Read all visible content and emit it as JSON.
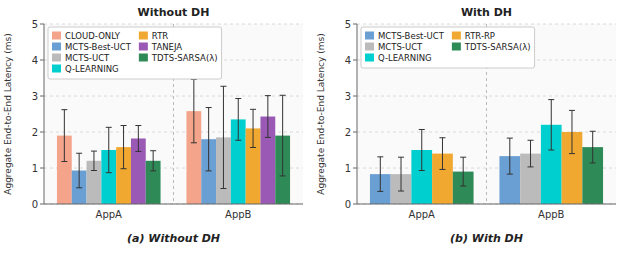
{
  "chart_data": [
    {
      "type": "bar",
      "title": "Without DH",
      "annotations": [
        "(a)  Without DH"
      ],
      "categories": [
        "AppA",
        "AppB"
      ],
      "series": [
        {
          "name": "CLOUD-ONLY",
          "color": "#F4A48A",
          "values": [
            1.9,
            2.58
          ],
          "yerr": [
            0.72,
            0.88
          ]
        },
        {
          "name": "MCTS-Best-UCT",
          "color": "#6A9FD4",
          "values": [
            0.93,
            1.8
          ],
          "yerr": [
            0.48,
            0.88
          ]
        },
        {
          "name": "MCTS-UCT",
          "color": "#BBBBBB",
          "values": [
            1.2,
            1.85
          ],
          "yerr": [
            0.27,
            1.42
          ]
        },
        {
          "name": "Q-LEARNING",
          "color": "#00CFCF",
          "values": [
            1.5,
            2.35
          ],
          "yerr": [
            0.63,
            0.58
          ]
        },
        {
          "name": "RTR",
          "color": "#F0A830",
          "values": [
            1.58,
            2.1
          ],
          "yerr": [
            0.6,
            0.53
          ]
        },
        {
          "name": "TANEJA",
          "color": "#9B59B6",
          "values": [
            1.82,
            2.43
          ],
          "yerr": [
            0.36,
            0.58
          ]
        },
        {
          "name": "TDTS-SARSA(λ)",
          "color": "#2E8B57",
          "values": [
            1.2,
            1.9
          ],
          "yerr": [
            0.28,
            1.12
          ]
        }
      ],
      "ylabel": "Aggregate End-to-End Latency (ms)",
      "ylim": [
        0,
        5
      ],
      "yticks": [
        0,
        1,
        2,
        3,
        4,
        5
      ],
      "grid": true,
      "legend": "upper left"
    },
    {
      "type": "bar",
      "title": "With DH",
      "annotations": [
        "(b)  With DH"
      ],
      "categories": [
        "AppA",
        "AppB"
      ],
      "series": [
        {
          "name": "MCTS-Best-UCT",
          "color": "#6A9FD4",
          "values": [
            0.83,
            1.33
          ],
          "yerr": [
            0.48,
            0.5
          ]
        },
        {
          "name": "MCTS-UCT",
          "color": "#BBBBBB",
          "values": [
            0.83,
            1.4
          ],
          "yerr": [
            0.47,
            0.37
          ]
        },
        {
          "name": "Q-LEARNING",
          "color": "#00CFCF",
          "values": [
            1.5,
            2.2
          ],
          "yerr": [
            0.57,
            0.7
          ]
        },
        {
          "name": "RTR-RP",
          "color": "#F0A830",
          "values": [
            1.4,
            2.0
          ],
          "yerr": [
            0.44,
            0.6
          ]
        },
        {
          "name": "TDTS-SARSA(λ)",
          "color": "#2E8B57",
          "values": [
            0.9,
            1.58
          ],
          "yerr": [
            0.4,
            0.44
          ]
        }
      ],
      "ylabel": "Aggregate End-to-End Latency (ms)",
      "ylim": [
        0,
        5
      ],
      "yticks": [
        0,
        1,
        2,
        3,
        4,
        5
      ],
      "grid": true,
      "legend": "upper left"
    }
  ]
}
